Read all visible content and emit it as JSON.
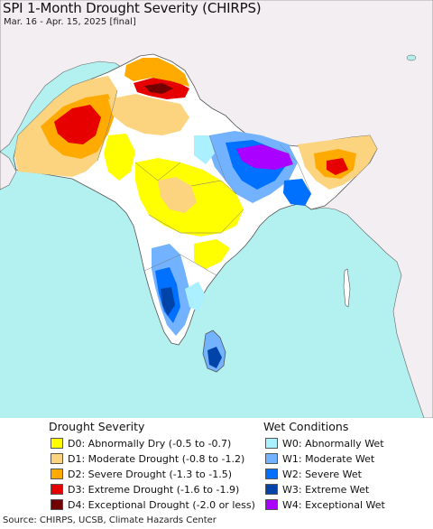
{
  "title": "SPI 1-Month Drought Severity (CHIRPS)",
  "subtitle": "Mar. 16 - Apr. 15, 2025 [final]",
  "colors": {
    "ocean": "#b3f0f0",
    "land_outside": "#f2eef2",
    "land_normal": "#ffffff",
    "boundary": "#555555"
  },
  "legend": {
    "drought": {
      "title": "Drought Severity",
      "items": [
        {
          "code": "D0",
          "label": "D0: Abnormally Dry (-0.5 to -0.7)",
          "color": "#ffff00"
        },
        {
          "code": "D1",
          "label": "D1: Moderate Drought (-0.8 to -1.2)",
          "color": "#fcd37f"
        },
        {
          "code": "D2",
          "label": "D2: Severe Drought (-1.3 to -1.5)",
          "color": "#ffaa00"
        },
        {
          "code": "D3",
          "label": "D3: Extreme Drought (-1.6 to -1.9)",
          "color": "#e60000"
        },
        {
          "code": "D4",
          "label": "D4: Exceptional Drought (-2.0 or less)",
          "color": "#730000"
        }
      ]
    },
    "wet": {
      "title": "Wet Conditions",
      "items": [
        {
          "code": "W0",
          "label": "W0: Abnormally Wet",
          "color": "#aaf0ff"
        },
        {
          "code": "W1",
          "label": "W1: Moderate Wet",
          "color": "#73b2ff"
        },
        {
          "code": "W2",
          "label": "W2: Severe Wet",
          "color": "#0070ff"
        },
        {
          "code": "W3",
          "label": "W3: Extreme Wet",
          "color": "#0044aa"
        },
        {
          "code": "W4",
          "label": "W4: Exceptional Wet",
          "color": "#aa00ff"
        }
      ]
    }
  },
  "source": "Source: CHIRPS, UCSB, Climate Hazards Center"
}
